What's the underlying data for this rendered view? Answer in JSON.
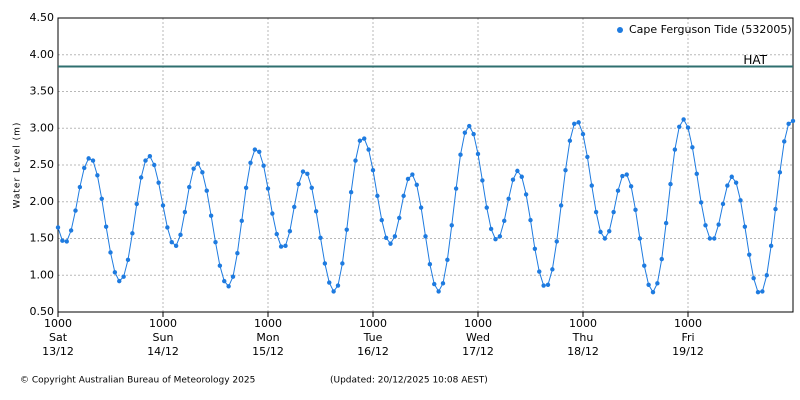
{
  "chart_data": {
    "type": "line",
    "ylabel": "Water Level (m)",
    "legend": "upper right",
    "grid": true,
    "xlim": [
      0,
      168
    ],
    "ylim": [
      0.5,
      4.5
    ],
    "yticks": [
      {
        "value": 0.5,
        "label": "0.50"
      },
      {
        "value": 1,
        "label": "1.00"
      },
      {
        "value": 1.5,
        "label": "1.50"
      },
      {
        "value": 2,
        "label": "2.00"
      },
      {
        "value": 2.5,
        "label": "2.50"
      },
      {
        "value": 3,
        "label": "3.00"
      },
      {
        "value": 3.5,
        "label": "3.50"
      },
      {
        "value": 4,
        "label": "4.00"
      },
      {
        "value": 4.5,
        "label": "4.50"
      }
    ],
    "xticks": [
      {
        "value": 0,
        "label": "1000",
        "day": "Sat",
        "date": "13/12"
      },
      {
        "value": 24,
        "label": "1000",
        "day": "Sun",
        "date": "14/12"
      },
      {
        "value": 48,
        "label": "1000",
        "day": "Mon",
        "date": "15/12"
      },
      {
        "value": 72,
        "label": "1000",
        "day": "Tue",
        "date": "16/12"
      },
      {
        "value": 96,
        "label": "1000",
        "day": "Wed",
        "date": "17/12"
      },
      {
        "value": 120,
        "label": "1000",
        "day": "Thu",
        "date": "18/12"
      },
      {
        "value": 144,
        "label": "1000",
        "day": "Fri",
        "date": "19/12"
      }
    ],
    "reference_line": {
      "label": "HAT",
      "value": 3.84,
      "color": "#2f6f6f"
    },
    "x": [
      0,
      1,
      2,
      3,
      4,
      5,
      6,
      7,
      8,
      9,
      10,
      11,
      12,
      13,
      14,
      15,
      16,
      17,
      18,
      19,
      20,
      21,
      22,
      23,
      24,
      25,
      26,
      27,
      28,
      29,
      30,
      31,
      32,
      33,
      34,
      35,
      36,
      37,
      38,
      39,
      40,
      41,
      42,
      43,
      44,
      45,
      46,
      47,
      48,
      49,
      50,
      51,
      52,
      53,
      54,
      55,
      56,
      57,
      58,
      59,
      60,
      61,
      62,
      63,
      64,
      65,
      66,
      67,
      68,
      69,
      70,
      71,
      72,
      73,
      74,
      75,
      76,
      77,
      78,
      79,
      80,
      81,
      82,
      83,
      84,
      85,
      86,
      87,
      88,
      89,
      90,
      91,
      92,
      93,
      94,
      95,
      96,
      97,
      98,
      99,
      100,
      101,
      102,
      103,
      104,
      105,
      106,
      107,
      108,
      109,
      110,
      111,
      112,
      113,
      114,
      115,
      116,
      117,
      118,
      119,
      120,
      121,
      122,
      123,
      124,
      125,
      126,
      127,
      128,
      129,
      130,
      131,
      132,
      133,
      134,
      135,
      136,
      137,
      138,
      139,
      140,
      141,
      142,
      143,
      144,
      145,
      146,
      147,
      148,
      149,
      150,
      151,
      152,
      153,
      154,
      155,
      156,
      157,
      158,
      159,
      160,
      161,
      162,
      163,
      164,
      165,
      166,
      167,
      168
    ],
    "series": [
      {
        "name": "Cape Ferguson Tide (532005)",
        "color": "#1e7be0",
        "values": [
          1.65,
          1.47,
          1.46,
          1.61,
          1.88,
          2.2,
          2.46,
          2.59,
          2.56,
          2.36,
          2.04,
          1.66,
          1.31,
          1.04,
          0.92,
          0.98,
          1.21,
          1.57,
          1.97,
          2.33,
          2.56,
          2.62,
          2.5,
          2.26,
          1.95,
          1.65,
          1.45,
          1.4,
          1.55,
          1.86,
          2.2,
          2.45,
          2.52,
          2.4,
          2.15,
          1.81,
          1.45,
          1.13,
          0.92,
          0.85,
          0.98,
          1.3,
          1.74,
          2.19,
          2.53,
          2.71,
          2.68,
          2.49,
          2.18,
          1.84,
          1.56,
          1.39,
          1.4,
          1.6,
          1.93,
          2.24,
          2.41,
          2.38,
          2.19,
          1.87,
          1.51,
          1.16,
          0.9,
          0.78,
          0.86,
          1.16,
          1.62,
          2.13,
          2.56,
          2.83,
          2.86,
          2.71,
          2.43,
          2.08,
          1.75,
          1.51,
          1.43,
          1.53,
          1.78,
          2.08,
          2.31,
          2.37,
          2.23,
          1.92,
          1.53,
          1.15,
          0.88,
          0.78,
          0.89,
          1.21,
          1.68,
          2.18,
          2.64,
          2.94,
          3.03,
          2.92,
          2.65,
          2.29,
          1.92,
          1.63,
          1.49,
          1.53,
          1.74,
          2.04,
          2.3,
          2.42,
          2.34,
          2.1,
          1.75,
          1.36,
          1.05,
          0.86,
          0.87,
          1.08,
          1.46,
          1.95,
          2.43,
          2.83,
          3.06,
          3.08,
          2.92,
          2.61,
          2.22,
          1.86,
          1.59,
          1.5,
          1.6,
          1.86,
          2.15,
          2.35,
          2.37,
          2.21,
          1.89,
          1.5,
          1.13,
          0.87,
          0.77,
          0.89,
          1.22,
          1.71,
          2.24,
          2.71,
          3.02,
          3.12,
          3.01,
          2.74,
          2.38,
          1.99,
          1.68,
          1.5,
          1.5,
          1.69,
          1.97,
          2.22,
          2.34,
          2.26,
          2.02,
          1.66,
          1.28,
          0.96,
          0.77,
          0.78,
          1.0,
          1.4,
          1.9,
          2.4,
          2.82,
          3.06,
          3.1
        ]
      }
    ],
    "footer": {
      "copyright": "© Copyright Australian Bureau of Meteorology 2025",
      "updated": "(Updated: 20/12/2025 10:08 AEST)"
    }
  }
}
